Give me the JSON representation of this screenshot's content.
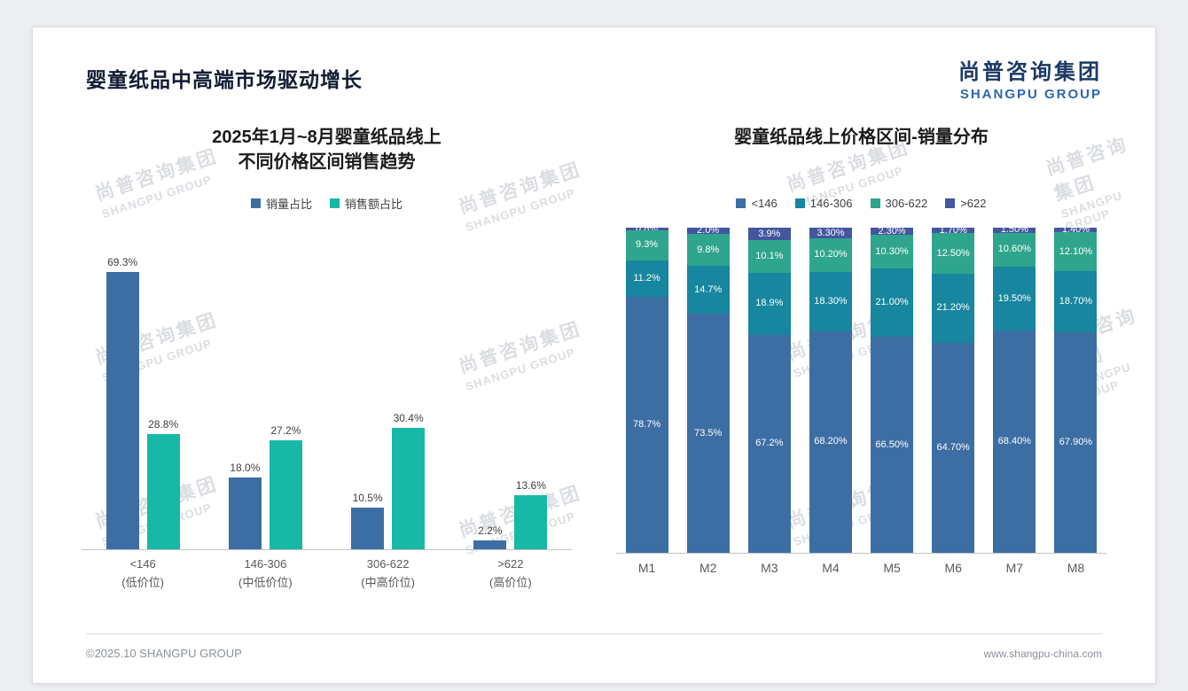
{
  "page": {
    "title": "婴童纸品中高端市场驱动增长",
    "footer_left": "©2025.10 SHANGPU GROUP",
    "footer_right": "www.shangpu-china.com"
  },
  "logo": {
    "cn": "尚普咨询集团",
    "en": "SHANGPU GROUP"
  },
  "watermark": {
    "cn": "尚普咨询集团",
    "en": "SHANGPU GROUP"
  },
  "chart_data": [
    {
      "type": "bar",
      "title": "2025年1月~8月婴童纸品线上 不同价格区间销售趋势",
      "title_lines": [
        "2025年1月~8月婴童纸品线上",
        "不同价格区间销售趋势"
      ],
      "categories": [
        "<146",
        "146-306",
        "306-622",
        ">622"
      ],
      "category_sublabels": [
        "(低价位)",
        "(中低价位)",
        "(中高价位)",
        "(高价位)"
      ],
      "series": [
        {
          "name": "销量占比",
          "color": "#3D6EA3",
          "values": [
            69.3,
            18.0,
            10.5,
            2.2
          ],
          "labels": [
            "69.3%",
            "18.0%",
            "10.5%",
            "2.2%"
          ]
        },
        {
          "name": "销售额占比",
          "color": "#17B8A6",
          "values": [
            28.8,
            27.2,
            30.4,
            13.6
          ],
          "labels": [
            "28.8%",
            "27.2%",
            "30.4%",
            "13.6%"
          ]
        }
      ],
      "ylim": [
        0,
        75
      ],
      "grid": false,
      "legend_position": "top"
    },
    {
      "type": "bar",
      "stacked": true,
      "title": "婴童纸品线上价格区间-销量分布",
      "categories": [
        "M1",
        "M2",
        "M3",
        "M4",
        "M5",
        "M6",
        "M7",
        "M8"
      ],
      "series": [
        {
          "name": "<146",
          "color": "#3D6EA3",
          "values": [
            78.7,
            73.5,
            67.2,
            68.2,
            66.5,
            64.7,
            68.4,
            67.9
          ],
          "labels": [
            "78.7%",
            "73.5%",
            "67.2%",
            "68.20%",
            "66.50%",
            "64.70%",
            "68.40%",
            "67.90%"
          ]
        },
        {
          "name": "146-306",
          "color": "#17869E",
          "values": [
            11.2,
            14.7,
            18.9,
            18.3,
            21.0,
            21.2,
            19.5,
            18.7
          ],
          "labels": [
            "11.2%",
            "14.7%",
            "18.9%",
            "18.30%",
            "21.00%",
            "21.20%",
            "19.50%",
            "18.70%"
          ]
        },
        {
          "name": "306-622",
          "color": "#2FA58D",
          "values": [
            9.3,
            9.8,
            10.1,
            10.2,
            10.3,
            12.5,
            10.6,
            12.1
          ],
          "labels": [
            "9.3%",
            "9.8%",
            "10.1%",
            "10.20%",
            "10.30%",
            "12.50%",
            "10.60%",
            "12.10%"
          ]
        },
        {
          "name": ">622",
          "color": "#44569F",
          "values": [
            0.8,
            2.0,
            3.9,
            3.3,
            2.3,
            1.7,
            1.5,
            1.4
          ],
          "labels": [
            "0.8%",
            "2.0%",
            "3.9%",
            "3.30%",
            "2.30%",
            "1.70%",
            "1.50%",
            "1.40%"
          ]
        }
      ],
      "ylim": [
        0,
        100
      ],
      "grid": false,
      "legend_position": "top"
    }
  ]
}
